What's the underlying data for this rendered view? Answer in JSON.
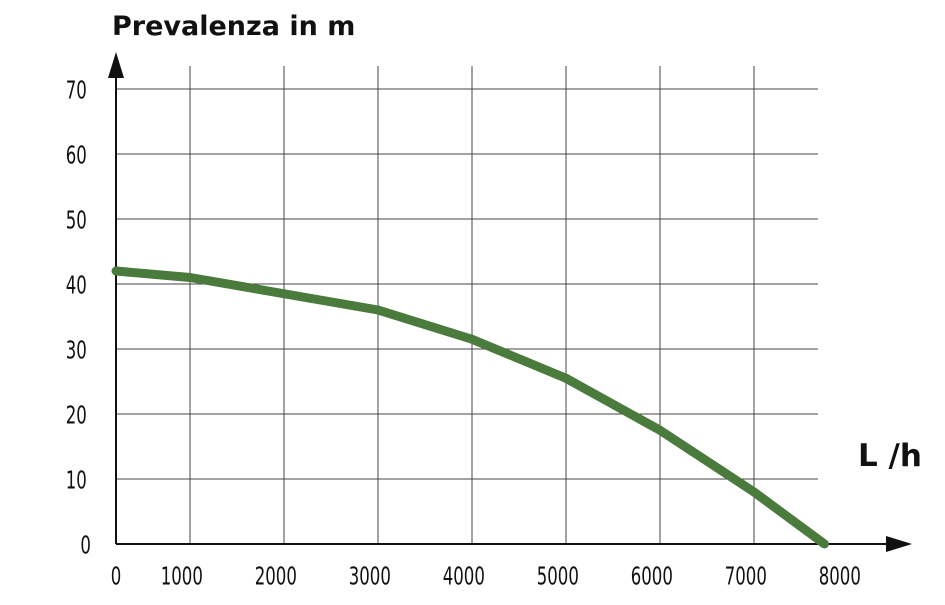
{
  "chart_data": {
    "type": "line",
    "title": "",
    "ylabel": "Prevalenza in m",
    "xlabel": "L /h",
    "xlim": [
      0,
      8000
    ],
    "ylim": [
      0,
      70
    ],
    "x_ticks": [
      0,
      1000,
      2000,
      3000,
      4000,
      5000,
      6000,
      7000,
      8000
    ],
    "y_ticks": [
      0,
      10,
      20,
      30,
      40,
      50,
      60,
      70
    ],
    "x_tick_labels": [
      "0",
      "1000",
      "2000",
      "3000",
      "4000",
      "5000",
      "6000",
      "7000",
      "8000"
    ],
    "y_tick_labels": [
      "0",
      "10",
      "20",
      "30",
      "40",
      "50",
      "60",
      "70"
    ],
    "grid": true,
    "series": [
      {
        "color": "#4a7a3c",
        "points": [
          {
            "x": 0,
            "y": 42
          },
          {
            "x": 1000,
            "y": 41
          },
          {
            "x": 2000,
            "y": 38.5
          },
          {
            "x": 3000,
            "y": 36
          },
          {
            "x": 4000,
            "y": 31.5
          },
          {
            "x": 5000,
            "y": 25.5
          },
          {
            "x": 6000,
            "y": 17.5
          },
          {
            "x": 7000,
            "y": 8
          },
          {
            "x": 7750,
            "y": 0
          }
        ]
      }
    ]
  }
}
